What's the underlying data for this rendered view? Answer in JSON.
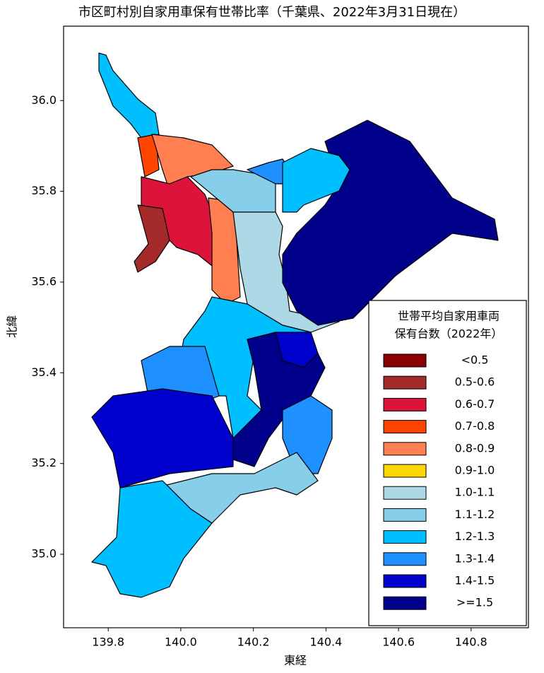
{
  "chart_data": {
    "type": "choropleth",
    "title": "市区町村別自家用車保有世帯比率（千葉県、2022年3月31日現在）",
    "xlabel": "東経",
    "ylabel": "北緯",
    "xlim": [
      139.677,
      140.958
    ],
    "ylim": [
      34.838,
      36.164
    ],
    "xticks": [
      139.8,
      {
        "value": 140,
        "label": "140.0"
      },
      140.2,
      140.4,
      140.6,
      140.8
    ],
    "yticks": [
      {
        "value": 35,
        "label": "35.0"
      },
      35.2,
      35.4,
      35.6,
      35.8,
      {
        "value": 36,
        "label": "36.0"
      }
    ],
    "legend_title": [
      "世帯平均自家用車両",
      "保有台数（2022年）"
    ],
    "legend": [
      {
        "name": "<0.5",
        "color": "#8b0000"
      },
      {
        "name": "0.5-0.6",
        "color": "#a52a2a"
      },
      {
        "name": "0.6-0.7",
        "color": "#dc143c"
      },
      {
        "name": "0.7-0.8",
        "color": "#ff4500"
      },
      {
        "name": "0.8-0.9",
        "color": "#ff7f50"
      },
      {
        "name": "0.9-1.0",
        "color": "#ffd700"
      },
      {
        "name": "1.0-1.1",
        "color": "#add8e6"
      },
      {
        "name": "1.1-1.2",
        "color": "#87ceeb"
      },
      {
        "name": "1.2-1.3",
        "color": "#00bfff"
      },
      {
        "name": "1.3-1.4",
        "color": "#1e90ff"
      },
      {
        "name": "1.4-1.5",
        "color": "#0000cd"
      },
      {
        "name": ">=1.5",
        "color": "#00008b"
      }
    ]
  }
}
